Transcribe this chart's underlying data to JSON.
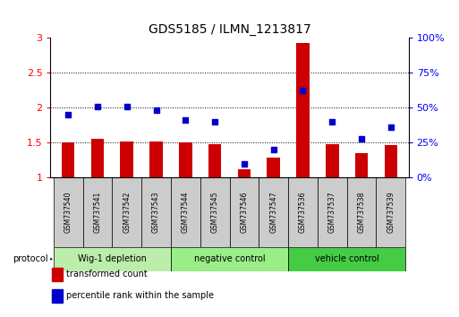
{
  "title": "GDS5185 / ILMN_1213817",
  "samples": [
    "GSM737540",
    "GSM737541",
    "GSM737542",
    "GSM737543",
    "GSM737544",
    "GSM737545",
    "GSM737546",
    "GSM737547",
    "GSM737536",
    "GSM737537",
    "GSM737538",
    "GSM737539"
  ],
  "bar_values": [
    1.5,
    1.55,
    1.52,
    1.52,
    1.5,
    1.48,
    1.12,
    1.28,
    2.93,
    1.48,
    1.35,
    1.47
  ],
  "dot_values": [
    1.9,
    2.02,
    2.02,
    1.96,
    1.83,
    1.8,
    1.2,
    1.4,
    2.25,
    1.8,
    1.56,
    1.72
  ],
  "bar_color": "#cc0000",
  "dot_color": "#0000cc",
  "ylim_left": [
    1.0,
    3.0
  ],
  "ylim_right": [
    0,
    100
  ],
  "yticks_left": [
    1.0,
    1.5,
    2.0,
    2.5,
    3.0
  ],
  "ytick_labels_left": [
    "1",
    "1.5",
    "2",
    "2.5",
    "3"
  ],
  "yticks_right": [
    0,
    25,
    50,
    75,
    100
  ],
  "ytick_labels_right": [
    "0%",
    "25%",
    "50%",
    "75%",
    "100%"
  ],
  "groups": [
    {
      "label": "Wig-1 depletion",
      "start": 0,
      "end": 4,
      "color": "#bbeeaa"
    },
    {
      "label": "negative control",
      "start": 4,
      "end": 8,
      "color": "#99ee88"
    },
    {
      "label": "vehicle control",
      "start": 8,
      "end": 12,
      "color": "#44cc44"
    }
  ],
  "protocol_label": "protocol",
  "legend_bar_label": "transformed count",
  "legend_dot_label": "percentile rank within the sample",
  "bar_width": 0.45,
  "sample_box_color": "#cccccc",
  "grid_lines": [
    1.5,
    2.0,
    2.5
  ],
  "grid_color": "black",
  "grid_lw": 0.7,
  "grid_ls": ":"
}
